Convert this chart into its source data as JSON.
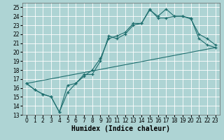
{
  "xlabel": "Humidex (Indice chaleur)",
  "background_color": "#aed4d4",
  "grid_color": "#ffffff",
  "line_color": "#1e6e6e",
  "xlim": [
    -0.5,
    23.5
  ],
  "ylim": [
    13,
    25.5
  ],
  "xticks": [
    0,
    1,
    2,
    3,
    4,
    5,
    6,
    7,
    8,
    9,
    10,
    11,
    12,
    13,
    14,
    15,
    16,
    17,
    18,
    19,
    20,
    21,
    22,
    23
  ],
  "yticks": [
    13,
    14,
    15,
    16,
    17,
    18,
    19,
    20,
    21,
    22,
    23,
    24,
    25
  ],
  "line1_x": [
    0,
    1,
    2,
    3,
    4,
    5,
    6,
    7,
    8,
    9,
    10,
    11,
    12,
    13,
    14,
    15,
    16,
    17,
    18,
    19,
    20,
    21,
    22,
    23
  ],
  "line1_y": [
    16.5,
    15.8,
    15.3,
    15.0,
    13.3,
    16.3,
    16.5,
    17.3,
    18.0,
    19.3,
    21.5,
    21.8,
    22.2,
    23.2,
    23.2,
    24.8,
    23.8,
    23.8,
    24.0,
    24.0,
    23.7,
    22.0,
    21.5,
    20.8
  ],
  "line2_x": [
    0,
    1,
    2,
    3,
    4,
    5,
    6,
    7,
    8,
    9,
    10,
    11,
    12,
    13,
    14,
    15,
    16,
    17,
    18,
    19,
    20,
    21,
    22,
    23
  ],
  "line2_y": [
    16.5,
    15.8,
    15.3,
    15.0,
    13.3,
    15.5,
    16.5,
    17.5,
    17.5,
    19.0,
    21.8,
    21.5,
    22.0,
    23.0,
    23.2,
    24.7,
    24.0,
    24.8,
    24.0,
    24.0,
    23.8,
    21.5,
    20.8,
    20.5
  ],
  "line3_x": [
    0,
    23
  ],
  "line3_y": [
    16.5,
    20.5
  ],
  "marker": "+",
  "markersize": 3,
  "linewidth": 0.8,
  "xlabel_fontsize": 7,
  "tick_fontsize": 5.5
}
